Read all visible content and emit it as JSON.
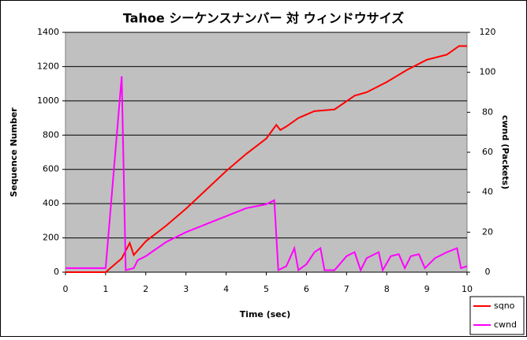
{
  "chart_data": {
    "type": "line",
    "title": "Tahoe シーケンスナンバー 対 ウィンドウサイズ",
    "x_label": "Time (sec)",
    "y_label": "Sequence Number",
    "y2_label": "cwnd (Packets)",
    "xlim": [
      0,
      10
    ],
    "xticks": [
      0,
      1,
      2,
      3,
      4,
      5,
      6,
      7,
      8,
      9,
      10
    ],
    "ylim": [
      0,
      1400
    ],
    "yticks": [
      0,
      200,
      400,
      600,
      800,
      1000,
      1200,
      1400
    ],
    "y2lim": [
      0,
      120
    ],
    "y2ticks": [
      0,
      20,
      40,
      60,
      80,
      100,
      120
    ],
    "grid": true,
    "legend": "bottom-right",
    "series": [
      {
        "name": "sqno",
        "color": "#ff0000",
        "axis": "y",
        "x": [
          0,
          1,
          1.4,
          1.6,
          1.7,
          2,
          2.5,
          3,
          3.5,
          4,
          4.5,
          5,
          5.25,
          5.35,
          5.5,
          5.8,
          6.2,
          6.7,
          7.2,
          7.5,
          8,
          8.5,
          9,
          9.5,
          9.8,
          10
        ],
        "values": [
          0,
          0,
          80,
          170,
          100,
          180,
          270,
          370,
          480,
          590,
          690,
          780,
          860,
          830,
          850,
          900,
          940,
          950,
          1030,
          1050,
          1110,
          1180,
          1240,
          1270,
          1320,
          1320
        ]
      },
      {
        "name": "cwnd",
        "color": "#ff00ff",
        "axis": "y2",
        "x": [
          0,
          1,
          1.4,
          1.5,
          1.7,
          1.8,
          2,
          2.5,
          3,
          3.5,
          4,
          4.5,
          5,
          5.2,
          5.3,
          5.5,
          5.7,
          5.8,
          6,
          6.2,
          6.35,
          6.45,
          6.7,
          7,
          7.2,
          7.35,
          7.5,
          7.8,
          7.9,
          8.1,
          8.3,
          8.45,
          8.6,
          8.8,
          8.95,
          9.2,
          9.5,
          9.75,
          9.85,
          10
        ],
        "values": [
          2,
          2,
          98,
          1,
          2,
          6,
          8,
          15,
          20,
          24,
          28,
          32,
          34,
          36,
          1,
          3,
          12,
          1,
          4,
          10,
          12,
          1,
          1,
          8,
          10,
          1,
          7,
          10,
          1,
          8,
          9,
          2,
          8,
          9,
          2,
          7,
          10,
          12,
          2,
          3
        ]
      }
    ]
  }
}
